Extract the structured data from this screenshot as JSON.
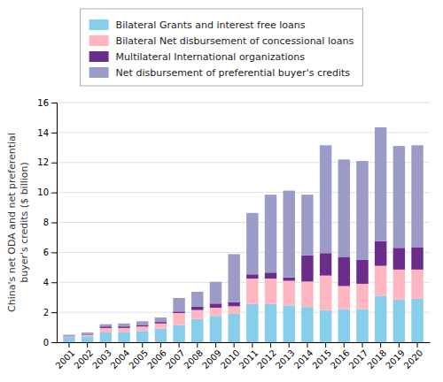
{
  "chart_data": {
    "type": "bar",
    "stacked": true,
    "categories": [
      "2001",
      "2002",
      "2003",
      "2004",
      "2005",
      "2006",
      "2007",
      "2008",
      "2009",
      "2010",
      "2011",
      "2012",
      "2013",
      "2014",
      "2015",
      "2016",
      "2017",
      "2018",
      "2019",
      "2020"
    ],
    "series": [
      {
        "name": "Bilateral Grants and interest free loans",
        "color": "#87CEEB",
        "values": [
          0.35,
          0.4,
          0.65,
          0.65,
          0.75,
          0.9,
          1.15,
          1.55,
          1.75,
          1.9,
          2.55,
          2.55,
          2.45,
          2.35,
          2.15,
          2.2,
          2.2,
          3.1,
          2.85,
          2.9
        ]
      },
      {
        "name": "Bilateral Net disbursement of concessional loans",
        "color": "#FFB6C1",
        "values": [
          0.05,
          0.1,
          0.3,
          0.3,
          0.3,
          0.35,
          0.8,
          0.6,
          0.55,
          0.5,
          1.7,
          1.7,
          1.65,
          1.7,
          2.3,
          1.55,
          1.7,
          2.0,
          2.0,
          1.95
        ]
      },
      {
        "name": "Multilateral International organizations",
        "color": "#6B2D8B",
        "values": [
          0.04,
          0.05,
          0.1,
          0.1,
          0.1,
          0.1,
          0.1,
          0.22,
          0.28,
          0.28,
          0.28,
          0.4,
          0.22,
          1.75,
          1.5,
          1.95,
          1.6,
          1.65,
          1.45,
          1.5
        ]
      },
      {
        "name": "Net disbursement of preferential buyer's credits",
        "color": "#9B9BC8",
        "values": [
          0.06,
          0.1,
          0.15,
          0.2,
          0.25,
          0.3,
          0.9,
          1.0,
          1.45,
          3.2,
          4.1,
          5.2,
          5.8,
          4.05,
          7.2,
          6.5,
          6.6,
          7.6,
          6.8,
          6.8
        ]
      }
    ],
    "y_label": "China's net ODA and net preferential\nbuyer's credits ($ billion)",
    "ylim": [
      0,
      16
    ],
    "yticks": [
      0,
      2,
      4,
      6,
      8,
      10,
      12,
      14,
      16
    ],
    "grid": true,
    "legend": "top"
  }
}
